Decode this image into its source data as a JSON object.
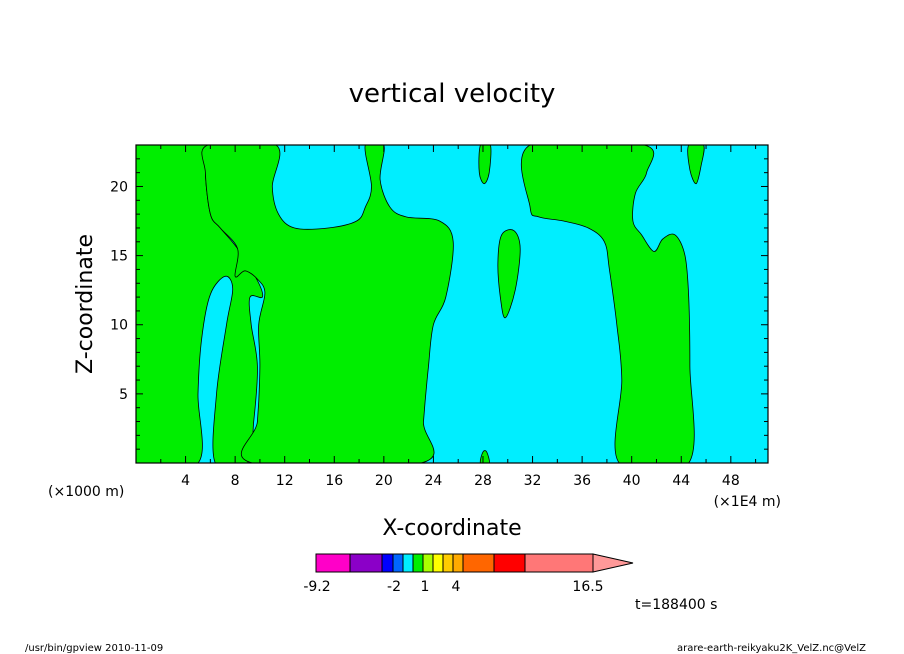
{
  "chart_data": {
    "type": "contour",
    "title": "vertical velocity",
    "xlabel": "X-coordinate",
    "ylabel": "Z-coordinate",
    "x_unit_left": "(×1000 m)",
    "x_unit_right": "(×1E4 m)",
    "xlim": [
      0,
      51
    ],
    "ylim": [
      0,
      23
    ],
    "x_ticks": [
      "4",
      "8",
      "12",
      "16",
      "20",
      "24",
      "28",
      "32",
      "36",
      "40",
      "44",
      "48"
    ],
    "x_tick_values": [
      4,
      8,
      12,
      16,
      20,
      24,
      28,
      32,
      36,
      40,
      44,
      48
    ],
    "y_ticks": [
      "5",
      "10",
      "15",
      "20"
    ],
    "y_tick_values": [
      5,
      10,
      15,
      20
    ],
    "fill_colors": {
      "background": "#00eeff",
      "positive_region": "#00ee00"
    },
    "regions": [
      {
        "name": "updraft-left",
        "points": [
          [
            2.2,
            23
          ],
          [
            5.8,
            23
          ],
          [
            5.6,
            21
          ],
          [
            6.0,
            18
          ],
          [
            6.8,
            17
          ],
          [
            8.2,
            15.5
          ],
          [
            9.8,
            13.2
          ],
          [
            10.2,
            12
          ],
          [
            9.2,
            12
          ],
          [
            9.3,
            10
          ],
          [
            9.8,
            7
          ],
          [
            9.5,
            3
          ],
          [
            9.0,
            0
          ],
          [
            6.4,
            0
          ],
          [
            6.5,
            5
          ],
          [
            7.3,
            10
          ],
          [
            7.8,
            12.6
          ],
          [
            7.2,
            13.5
          ],
          [
            6.0,
            12.2
          ],
          [
            5.3,
            9
          ],
          [
            5.0,
            5
          ],
          [
            5.0,
            0
          ],
          [
            0,
            0
          ],
          [
            0,
            23
          ]
        ]
      },
      {
        "name": "updraft-center",
        "points": [
          [
            11.3,
            23
          ],
          [
            11.0,
            20
          ],
          [
            11.5,
            18
          ],
          [
            12.8,
            17
          ],
          [
            15.5,
            17
          ],
          [
            17.8,
            17.5
          ],
          [
            18.5,
            18.5
          ],
          [
            19.0,
            20
          ],
          [
            18.5,
            23
          ],
          [
            20.0,
            23
          ],
          [
            19.7,
            20.5
          ],
          [
            20.5,
            18.5
          ],
          [
            21.8,
            17.8
          ],
          [
            24.5,
            17.5
          ],
          [
            25.6,
            16.0
          ],
          [
            25.0,
            12
          ],
          [
            24.0,
            10
          ],
          [
            23.6,
            7
          ],
          [
            23.2,
            3
          ],
          [
            23.0,
            0
          ],
          [
            9.4,
            0
          ],
          [
            9.8,
            3
          ],
          [
            10.0,
            7
          ],
          [
            9.9,
            10
          ],
          [
            10.4,
            12.3
          ],
          [
            9.8,
            13.3
          ],
          [
            8.8,
            13.9
          ],
          [
            8.0,
            13.5
          ],
          [
            8.2,
            15.5
          ],
          [
            6.8,
            17
          ],
          [
            6.0,
            18
          ],
          [
            5.6,
            21
          ],
          [
            5.8,
            23
          ]
        ]
      },
      {
        "name": "updraft-small-top",
        "points": [
          [
            27.8,
            23
          ],
          [
            28.6,
            23
          ],
          [
            28.5,
            21
          ],
          [
            28.1,
            20.2
          ],
          [
            27.7,
            21
          ]
        ]
      },
      {
        "name": "updraft-small-mid",
        "points": [
          [
            29.5,
            16.5
          ],
          [
            30.5,
            16.8
          ],
          [
            31.0,
            15.5
          ],
          [
            30.6,
            12.5
          ],
          [
            29.8,
            10.5
          ],
          [
            29.4,
            12
          ],
          [
            29.2,
            14.5
          ]
        ]
      },
      {
        "name": "updraft-small-bottom",
        "points": [
          [
            27.8,
            0
          ],
          [
            28.5,
            0
          ],
          [
            28.3,
            0.8
          ],
          [
            28.0,
            0.8
          ]
        ]
      },
      {
        "name": "updraft-right",
        "points": [
          [
            31.8,
            23
          ],
          [
            31.8,
            18.5
          ],
          [
            32.5,
            17.8
          ],
          [
            34.5,
            17.5
          ],
          [
            36.5,
            17.0
          ],
          [
            37.8,
            16.0
          ],
          [
            38.2,
            14
          ],
          [
            38.8,
            10
          ],
          [
            39.2,
            6
          ],
          [
            39.0,
            0
          ],
          [
            44.6,
            0
          ],
          [
            44.7,
            7
          ],
          [
            44.6,
            12
          ],
          [
            44.3,
            15
          ],
          [
            43.5,
            16.5
          ],
          [
            42.5,
            16.2
          ],
          [
            41.8,
            15.3
          ],
          [
            40.8,
            16.5
          ],
          [
            40.1,
            17.5
          ],
          [
            40.3,
            19.5
          ],
          [
            41.2,
            21
          ],
          [
            41.0,
            23
          ]
        ]
      },
      {
        "name": "updraft-far-right-top",
        "points": [
          [
            44.6,
            23
          ],
          [
            45.8,
            23
          ],
          [
            45.6,
            21.5
          ],
          [
            45.2,
            20.2
          ],
          [
            44.7,
            21.2
          ]
        ]
      }
    ],
    "colorbar": {
      "min_label": "-9.2",
      "labels": [
        "-2",
        "1",
        "4"
      ],
      "max_label": "16.5",
      "colors": [
        "#ff00c8",
        "#8b00c8",
        "#0000ff",
        "#0066ff",
        "#00eeff",
        "#00ee00",
        "#aaff00",
        "#ffff00",
        "#ffcc00",
        "#ffaa00",
        "#ff6600",
        "#ff0000",
        "#ff7777"
      ],
      "extend_color": "#ff9999"
    },
    "time_label": "t=188400  s"
  },
  "footer": {
    "left": "/usr/bin/gpview   2010-11-09",
    "right": "arare-earth-reikyaku2K_VelZ.nc@VelZ"
  }
}
